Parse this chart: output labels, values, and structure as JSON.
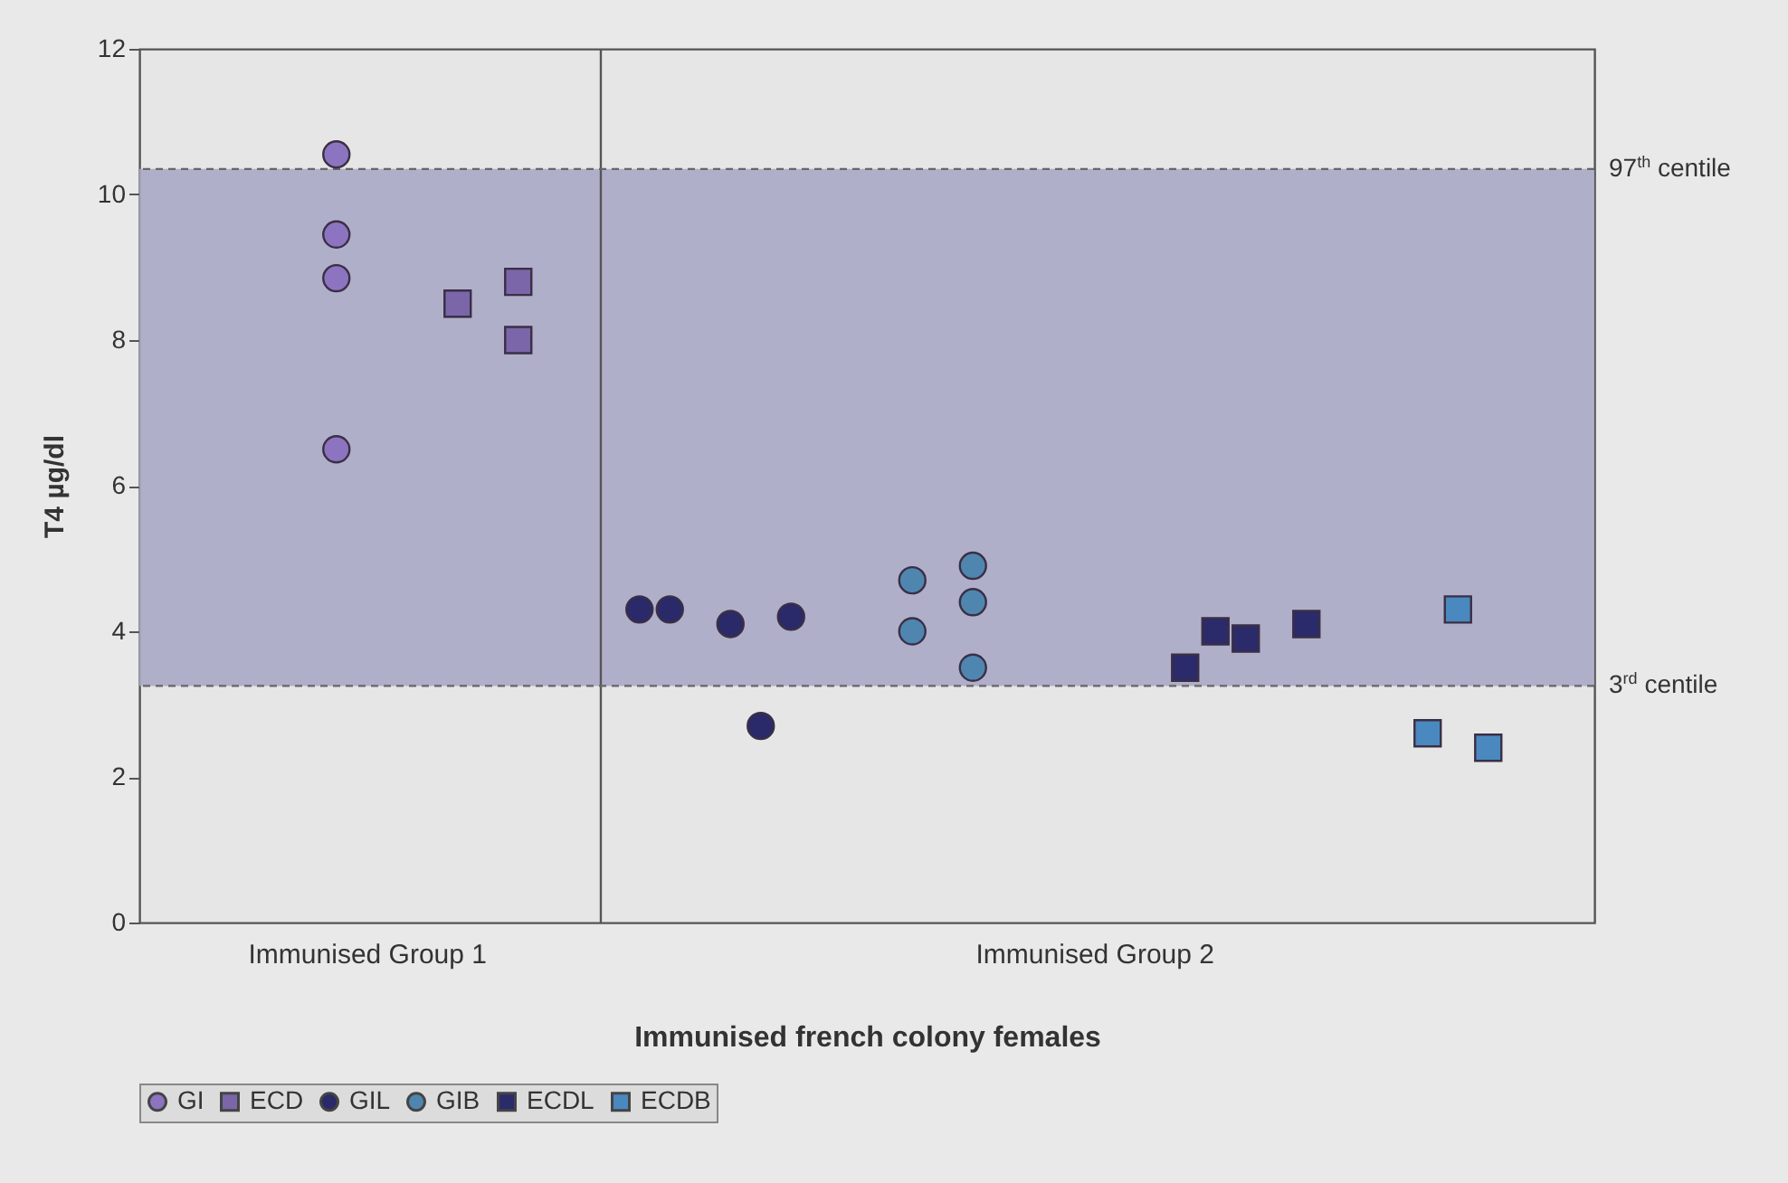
{
  "chart_data": {
    "type": "scatter",
    "xlabel": "Immunised french colony females",
    "ylabel": "T4 µg/dl",
    "categories": [
      null,
      null,
      null,
      null,
      null,
      null,
      null,
      "Immunised Group 1",
      null,
      null,
      null,
      null,
      null,
      null,
      null,
      null,
      null,
      null,
      null,
      null,
      null,
      null,
      null,
      null,
      null,
      null,
      null,
      null,
      null,
      null,
      null,
      "Immunised Group 2",
      null,
      null,
      null,
      null,
      null,
      null,
      null,
      null,
      null,
      null,
      null,
      null,
      null,
      null,
      null,
      null
    ],
    "ylim": [
      0,
      12
    ],
    "yticks": [
      0,
      2,
      4,
      6,
      8,
      10,
      12
    ],
    "legend": "bottom",
    "series": [
      {
        "name": "GI",
        "color": "#8d74c0",
        "marker": "circle",
        "values": [
          null,
          null,
          null,
          null,
          null,
          null,
          10.55,
          null,
          null,
          null,
          null,
          null,
          null,
          null,
          null,
          null,
          null,
          null,
          null,
          null,
          null,
          null,
          null,
          null,
          null,
          null,
          null,
          null,
          null,
          null,
          null,
          null,
          null,
          null,
          null,
          null,
          null,
          null,
          null,
          null,
          null,
          null,
          null,
          null,
          null,
          null,
          null,
          null
        ]
      },
      {
        "color": "#8d74c0",
        "marker": "circle",
        "values": [
          null,
          null,
          null,
          null,
          null,
          null,
          9.45,
          null,
          null,
          null,
          null,
          null,
          null,
          null,
          null,
          null,
          null,
          null,
          null,
          null,
          null,
          null,
          null,
          null,
          null,
          null,
          null,
          null,
          null,
          null,
          null,
          null,
          null,
          null,
          null,
          null,
          null,
          null,
          null,
          null,
          null,
          null,
          null,
          null,
          null,
          null,
          null,
          null
        ]
      },
      {
        "color": "#8d74c0",
        "marker": "circle",
        "values": [
          null,
          null,
          null,
          null,
          null,
          null,
          8.85,
          null,
          null,
          null,
          null,
          null,
          null,
          null,
          null,
          null,
          null,
          null,
          null,
          null,
          null,
          null,
          null,
          null,
          null,
          null,
          null,
          null,
          null,
          null,
          null,
          null,
          null,
          null,
          null,
          null,
          null,
          null,
          null,
          null,
          null,
          null,
          null,
          null,
          null,
          null,
          null,
          null
        ]
      },
      {
        "color": "#8d74c0",
        "marker": "circle",
        "values": [
          null,
          null,
          null,
          null,
          null,
          null,
          6.5,
          null,
          null,
          null,
          null,
          null,
          null,
          null,
          null,
          null,
          null,
          null,
          null,
          null,
          null,
          null,
          null,
          null,
          null,
          null,
          null,
          null,
          null,
          null,
          null,
          null,
          null,
          null,
          null,
          null,
          null,
          null,
          null,
          null,
          null,
          null,
          null,
          null,
          null,
          null,
          null,
          null
        ]
      },
      {
        "name": "ECD",
        "color": "#7a66a8",
        "marker": "square",
        "values": [
          null,
          null,
          null,
          null,
          null,
          null,
          null,
          null,
          null,
          null,
          8.5,
          null,
          8.8,
          null,
          null,
          null,
          null,
          null,
          null,
          null,
          null,
          null,
          null,
          null,
          null,
          null,
          null,
          null,
          null,
          null,
          null,
          null,
          null,
          null,
          null,
          null,
          null,
          null,
          null,
          null,
          null,
          null,
          null,
          null,
          null,
          null,
          null,
          null
        ]
      },
      {
        "color": "#7a66a8",
        "marker": "square",
        "values": [
          null,
          null,
          null,
          null,
          null,
          null,
          null,
          null,
          null,
          null,
          null,
          null,
          8.0,
          null,
          null,
          null,
          null,
          null,
          null,
          null,
          null,
          null,
          null,
          null,
          null,
          null,
          null,
          null,
          null,
          null,
          null,
          null,
          null,
          null,
          null,
          null,
          null,
          null,
          null,
          null,
          null,
          null,
          null,
          null,
          null,
          null,
          null,
          null
        ]
      },
      {
        "name": "GIL",
        "color": "#2a2a6a",
        "marker": "circle",
        "values": [
          null,
          null,
          null,
          null,
          null,
          null,
          null,
          null,
          null,
          null,
          null,
          null,
          null,
          null,
          null,
          null,
          4.3,
          4.3,
          null,
          4.1,
          2.7,
          4.2,
          null,
          null,
          null,
          null,
          null,
          null,
          null,
          null,
          null,
          null,
          null,
          null,
          null,
          null,
          null,
          null,
          null,
          null,
          null,
          null,
          null,
          null,
          null,
          null,
          null,
          null
        ]
      },
      {
        "name": "GIB",
        "color": "#4f86b0",
        "marker": "circle",
        "values": [
          null,
          null,
          null,
          null,
          null,
          null,
          null,
          null,
          null,
          null,
          null,
          null,
          null,
          null,
          null,
          null,
          null,
          null,
          null,
          null,
          null,
          null,
          null,
          null,
          null,
          4.7,
          null,
          4.9,
          null,
          null,
          null,
          null,
          null,
          null,
          null,
          null,
          null,
          null,
          null,
          null,
          null,
          null,
          null,
          null,
          null,
          null,
          null,
          null
        ]
      },
      {
        "color": "#4f86b0",
        "marker": "circle",
        "values": [
          null,
          null,
          null,
          null,
          null,
          null,
          null,
          null,
          null,
          null,
          null,
          null,
          null,
          null,
          null,
          null,
          null,
          null,
          null,
          null,
          null,
          null,
          null,
          null,
          null,
          4.0,
          null,
          4.4,
          null,
          null,
          null,
          null,
          null,
          null,
          null,
          null,
          null,
          null,
          null,
          null,
          null,
          null,
          null,
          null,
          null,
          null,
          null,
          null
        ]
      },
      {
        "color": "#4f86b0",
        "marker": "circle",
        "values": [
          null,
          null,
          null,
          null,
          null,
          null,
          null,
          null,
          null,
          null,
          null,
          null,
          null,
          null,
          null,
          null,
          null,
          null,
          null,
          null,
          null,
          null,
          null,
          null,
          null,
          null,
          null,
          3.5,
          null,
          null,
          null,
          null,
          null,
          null,
          null,
          null,
          null,
          null,
          null,
          null,
          null,
          null,
          null,
          null,
          null,
          null,
          null,
          null
        ]
      },
      {
        "name": "ECDL",
        "color": "#2b2b6b",
        "marker": "square",
        "values": [
          null,
          null,
          null,
          null,
          null,
          null,
          null,
          null,
          null,
          null,
          null,
          null,
          null,
          null,
          null,
          null,
          null,
          null,
          null,
          null,
          null,
          null,
          null,
          null,
          null,
          null,
          null,
          null,
          null,
          null,
          null,
          null,
          null,
          null,
          3.5,
          4.0,
          3.9,
          null,
          4.1,
          null,
          null,
          null,
          null,
          null,
          null,
          null,
          null,
          null
        ]
      },
      {
        "name": "ECDB",
        "color": "#4a88c0",
        "marker": "square",
        "values": [
          null,
          null,
          null,
          null,
          null,
          null,
          null,
          null,
          null,
          null,
          null,
          null,
          null,
          null,
          null,
          null,
          null,
          null,
          null,
          null,
          null,
          null,
          null,
          null,
          null,
          null,
          null,
          null,
          null,
          null,
          null,
          null,
          null,
          null,
          null,
          null,
          null,
          null,
          null,
          null,
          null,
          null,
          2.6,
          4.3,
          2.4,
          null,
          null,
          null
        ]
      }
    ],
    "ref_lines": [
      {
        "axis": "y",
        "value": 10.35,
        "label": "97$^{th}$ centile",
        "line_style": "dashed",
        "color": "#666666"
      },
      {
        "axis": "y",
        "value": 3.25,
        "label": "3$^{rd}$ centile",
        "line_style": "dashed",
        "color": "#666666"
      }
    ],
    "bands": [
      {
        "axis": "y",
        "from": 3.25,
        "to": 10.35,
        "color": "#aaa8c6"
      }
    ]
  }
}
